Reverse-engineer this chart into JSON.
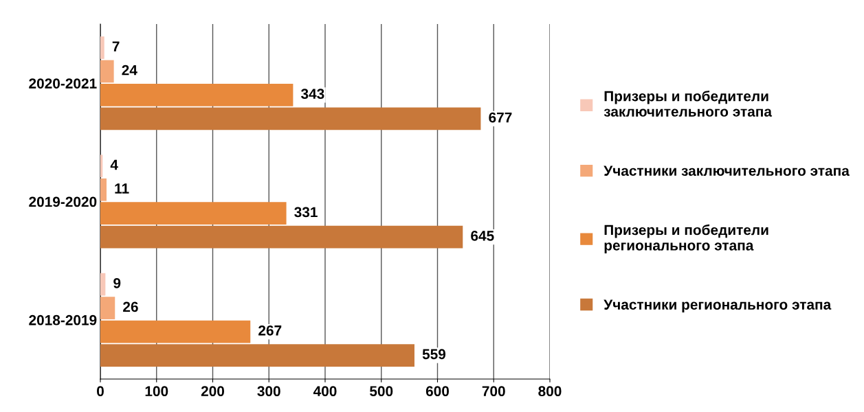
{
  "chart_data": {
    "type": "bar",
    "orientation": "horizontal",
    "categories": [
      "2020-2021",
      "2019-2020",
      "2018-2019"
    ],
    "series": [
      {
        "name": "Призеры и победители\nзаключительного этапа",
        "color": "#f8c8b8",
        "values": [
          7,
          4,
          9
        ]
      },
      {
        "name": "Участники заключительного этапа",
        "color": "#f4a878",
        "values": [
          24,
          11,
          26
        ]
      },
      {
        "name": "Призеры и победители\nрегионального этапа",
        "color": "#e8893c",
        "values": [
          343,
          331,
          267
        ]
      },
      {
        "name": "Участники регионального этапа",
        "color": "#c8783a",
        "values": [
          677,
          645,
          559
        ]
      }
    ],
    "xlim": [
      0,
      800
    ],
    "xticks": [
      0,
      100,
      200,
      300,
      400,
      500,
      600,
      700,
      800
    ],
    "grid": "x",
    "legend": "right",
    "data_labels": true
  }
}
